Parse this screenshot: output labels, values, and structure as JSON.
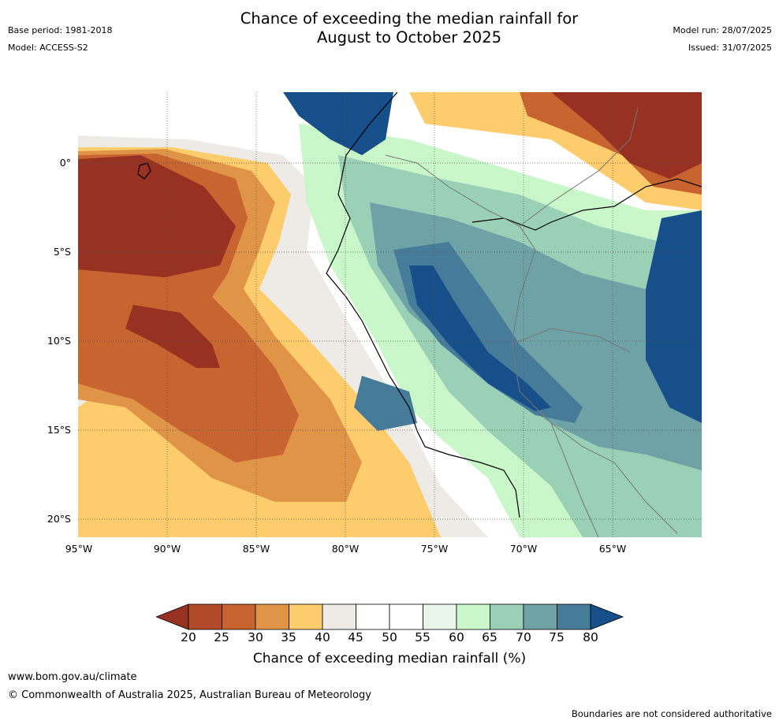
{
  "header": {
    "title_line1": "Chance of exceeding the median rainfall for",
    "title_line2": "August to October 2025",
    "base_period": "Base period: 1981-2018",
    "model": "Model: ACCESS-S2",
    "model_run": "Model run: 28/07/2025",
    "issued": "Issued: 31/07/2025"
  },
  "map": {
    "lat_labels": [
      "0°",
      "5°S",
      "10°S",
      "15°S",
      "20°S"
    ],
    "lon_labels": [
      "95°W",
      "90°W",
      "85°W",
      "80°W",
      "75°W",
      "70°W",
      "65°W"
    ]
  },
  "colorbar": {
    "ticks": [
      "20",
      "25",
      "30",
      "35",
      "40",
      "45",
      "50",
      "55",
      "60",
      "65",
      "70",
      "75",
      "80"
    ],
    "colors": [
      "#973122",
      "#b14a28",
      "#c8642f",
      "#e09447",
      "#fdcc6c",
      "#eeebe6",
      "#ffffff",
      "#ffffff",
      "#eaf5e9",
      "#c9f7c9",
      "#99d0b6",
      "#6fa2a6",
      "#477b9a",
      "#164f89"
    ],
    "label": "Chance of exceeding median rainfall (%)"
  },
  "footer": {
    "url": "www.bom.gov.au/climate",
    "copyright": "© Commonwealth of Australia 2025, Australian Bureau of Meteorology",
    "disclaimer": "Boundaries are not considered authoritative"
  }
}
